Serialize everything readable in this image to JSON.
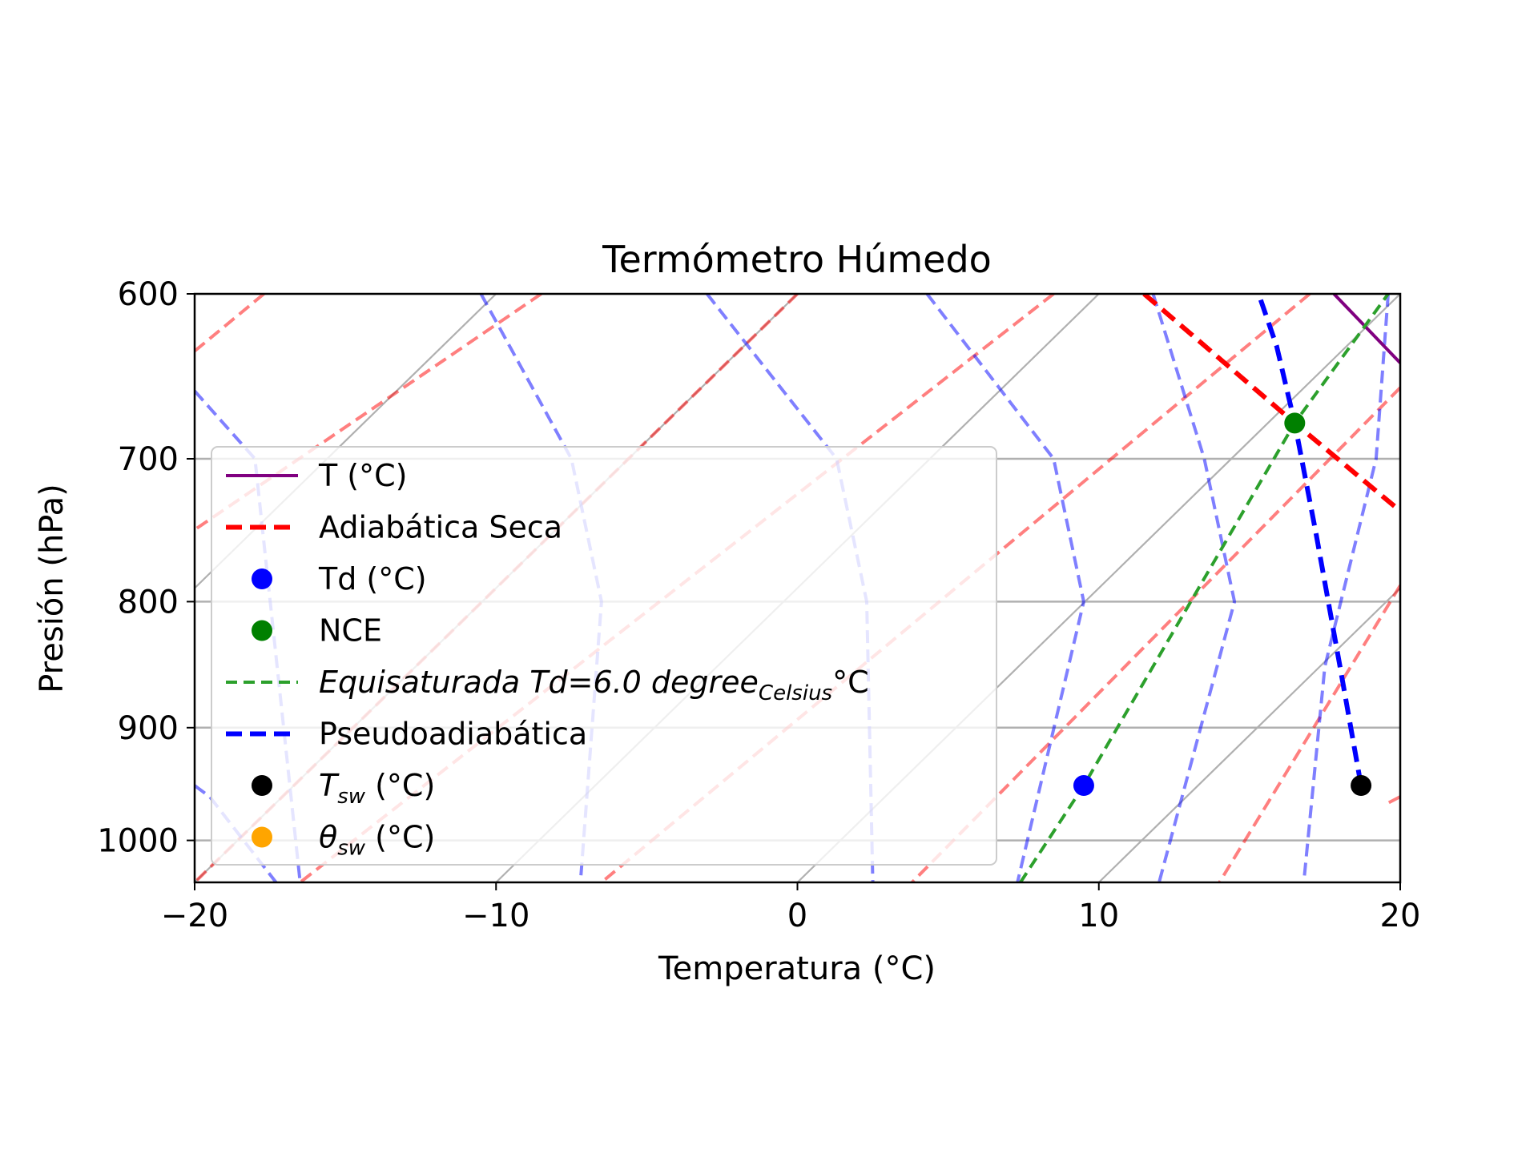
{
  "chart_data": {
    "type": "line",
    "title": "Termómetro Húmedo",
    "xlabel": "Temperatura (°C)",
    "ylabel": "Presión (hPa)",
    "xlim": [
      -20,
      20
    ],
    "ylim": [
      1040,
      600
    ],
    "yscale": "log",
    "x_ticks": [
      -20,
      -10,
      0,
      10,
      20
    ],
    "x_tick_labels": [
      "−20",
      "−10",
      "0",
      "10",
      "20"
    ],
    "y_ticks": [
      1000,
      900,
      800,
      700,
      600
    ],
    "y_tick_labels": [
      "1000",
      "900",
      "800",
      "700",
      "600"
    ],
    "grid": true,
    "legend_position": "center-left",
    "series": [
      {
        "name": "T (°C)",
        "kind": "line",
        "color": "#800080",
        "points": [
          [
            17.8,
            600
          ],
          [
            20,
            640
          ]
        ]
      },
      {
        "name": "Adiabática Seca",
        "kind": "dashed-line",
        "color": "#ff0000",
        "points": [
          [
            11.5,
            600
          ],
          [
            16.5,
            677
          ],
          [
            20,
            735
          ]
        ]
      },
      {
        "name": "Td (°C)",
        "kind": "marker",
        "color": "#0000ff",
        "points": [
          [
            9.5,
            950
          ]
        ]
      },
      {
        "name": "NCE",
        "kind": "marker",
        "color": "#008000",
        "points": [
          [
            16.5,
            677
          ]
        ]
      },
      {
        "name": "Equisaturada Td=6.0 degree_Celsius°C",
        "kind": "dashed-line",
        "color": "#2ca02c",
        "points": [
          [
            7.4,
            1040
          ],
          [
            9.5,
            950
          ],
          [
            16.5,
            677
          ],
          [
            19.6,
            600
          ]
        ]
      },
      {
        "name": "Pseudoadiabática",
        "kind": "dashed-line",
        "color": "#0000ff",
        "points": [
          [
            18.7,
            950
          ],
          [
            18.0,
            850
          ],
          [
            17.2,
            750
          ],
          [
            16.5,
            677
          ],
          [
            15.9,
            630
          ],
          [
            15.3,
            600
          ]
        ]
      },
      {
        "name": "T_sw (°C)",
        "kind": "marker",
        "color": "#000000",
        "points": [
          [
            18.7,
            950
          ]
        ]
      },
      {
        "name": "θ_sw (°C)",
        "kind": "marker",
        "color": "#ffa500",
        "points": []
      }
    ],
    "background_dry_adiabats": [
      {
        "name": "",
        "points": [
          [
            -17.7,
            600
          ],
          [
            -20,
            633
          ]
        ]
      },
      {
        "name": "",
        "points": [
          [
            -8.5,
            600
          ],
          [
            -20,
            748
          ]
        ]
      },
      {
        "name": "",
        "points": [
          [
            0,
            600
          ],
          [
            -20,
            1040
          ]
        ]
      },
      {
        "name": "",
        "points": [
          [
            8.5,
            600
          ],
          [
            -16.5,
            1040
          ]
        ]
      },
      {
        "name": "",
        "points": [
          [
            17,
            600
          ],
          [
            -6.5,
            1040
          ]
        ]
      },
      {
        "name": "",
        "points": [
          [
            20,
            655
          ],
          [
            3.8,
            1040
          ]
        ]
      },
      {
        "name": "",
        "points": [
          [
            20,
            788
          ],
          [
            14,
            1040
          ]
        ]
      },
      {
        "name": "",
        "points": [
          [
            20,
            960
          ],
          [
            19.5,
            967
          ]
        ]
      }
    ],
    "background_moist_adiabats": [
      {
        "name": "",
        "points": [
          [
            -20,
            657
          ],
          [
            -18,
            700
          ],
          [
            -16.5,
            1040
          ]
        ]
      },
      {
        "name": "",
        "points": [
          [
            -10.5,
            600
          ],
          [
            -7.5,
            700
          ],
          [
            -6.5,
            800
          ],
          [
            -7.2,
            1040
          ]
        ]
      },
      {
        "name": "",
        "points": [
          [
            -3,
            600
          ],
          [
            1.3,
            700
          ],
          [
            2.3,
            800
          ],
          [
            2.5,
            1040
          ]
        ]
      },
      {
        "name": "",
        "points": [
          [
            4.3,
            600
          ],
          [
            8.5,
            700
          ],
          [
            9.5,
            800
          ],
          [
            7.3,
            1040
          ]
        ]
      },
      {
        "name": "",
        "points": [
          [
            11.8,
            600
          ],
          [
            13.5,
            700
          ],
          [
            14.5,
            800
          ],
          [
            12,
            1040
          ]
        ]
      },
      {
        "name": "",
        "points": [
          [
            19.6,
            600
          ],
          [
            19.2,
            700
          ],
          [
            17.5,
            850
          ],
          [
            16.8,
            1040
          ]
        ]
      },
      {
        "name": "",
        "points": [
          [
            -20,
            950
          ],
          [
            -19.5,
            960
          ],
          [
            -17.3,
            1040
          ]
        ]
      }
    ],
    "background_isotherms": [
      -40,
      -30,
      -20,
      -10,
      0,
      10,
      20,
      30,
      40,
      50
    ]
  }
}
